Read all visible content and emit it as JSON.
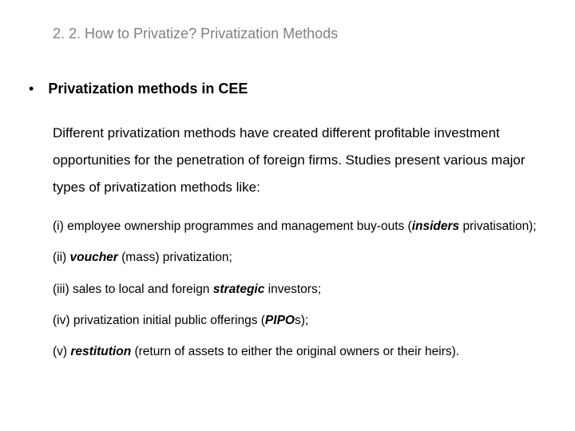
{
  "title": "2. 2. How to Privatize? Privatization Methods",
  "section": {
    "bullet": "•",
    "heading": "Privatization methods in CEE"
  },
  "body": {
    "p1a": "Different privatization methods have created different profitable",
    "p1b": "investment opportunities for the penetration of foreign firms. Studies",
    "p1c": "present various major types of privatization methods like:"
  },
  "items": {
    "i1_a": "(i)  employee ownership programmes and management buy-outs (",
    "i1_b": "insiders",
    "i1_c": " privatisation);",
    "i2_a": "(ii) ",
    "i2_b": "voucher",
    "i2_c": " (mass) privatization;",
    "i3_a": "(iii) sales to local and foreign ",
    "i3_b": "strategic",
    "i3_c": " investors;",
    "i4_a": "(iv) privatization initial public offerings (",
    "i4_b": "PIPO",
    "i4_c": "s);",
    "i5_a": "(v) ",
    "i5_b": "restitution",
    "i5_c": " (return of assets to either the original owners or their heirs)."
  }
}
